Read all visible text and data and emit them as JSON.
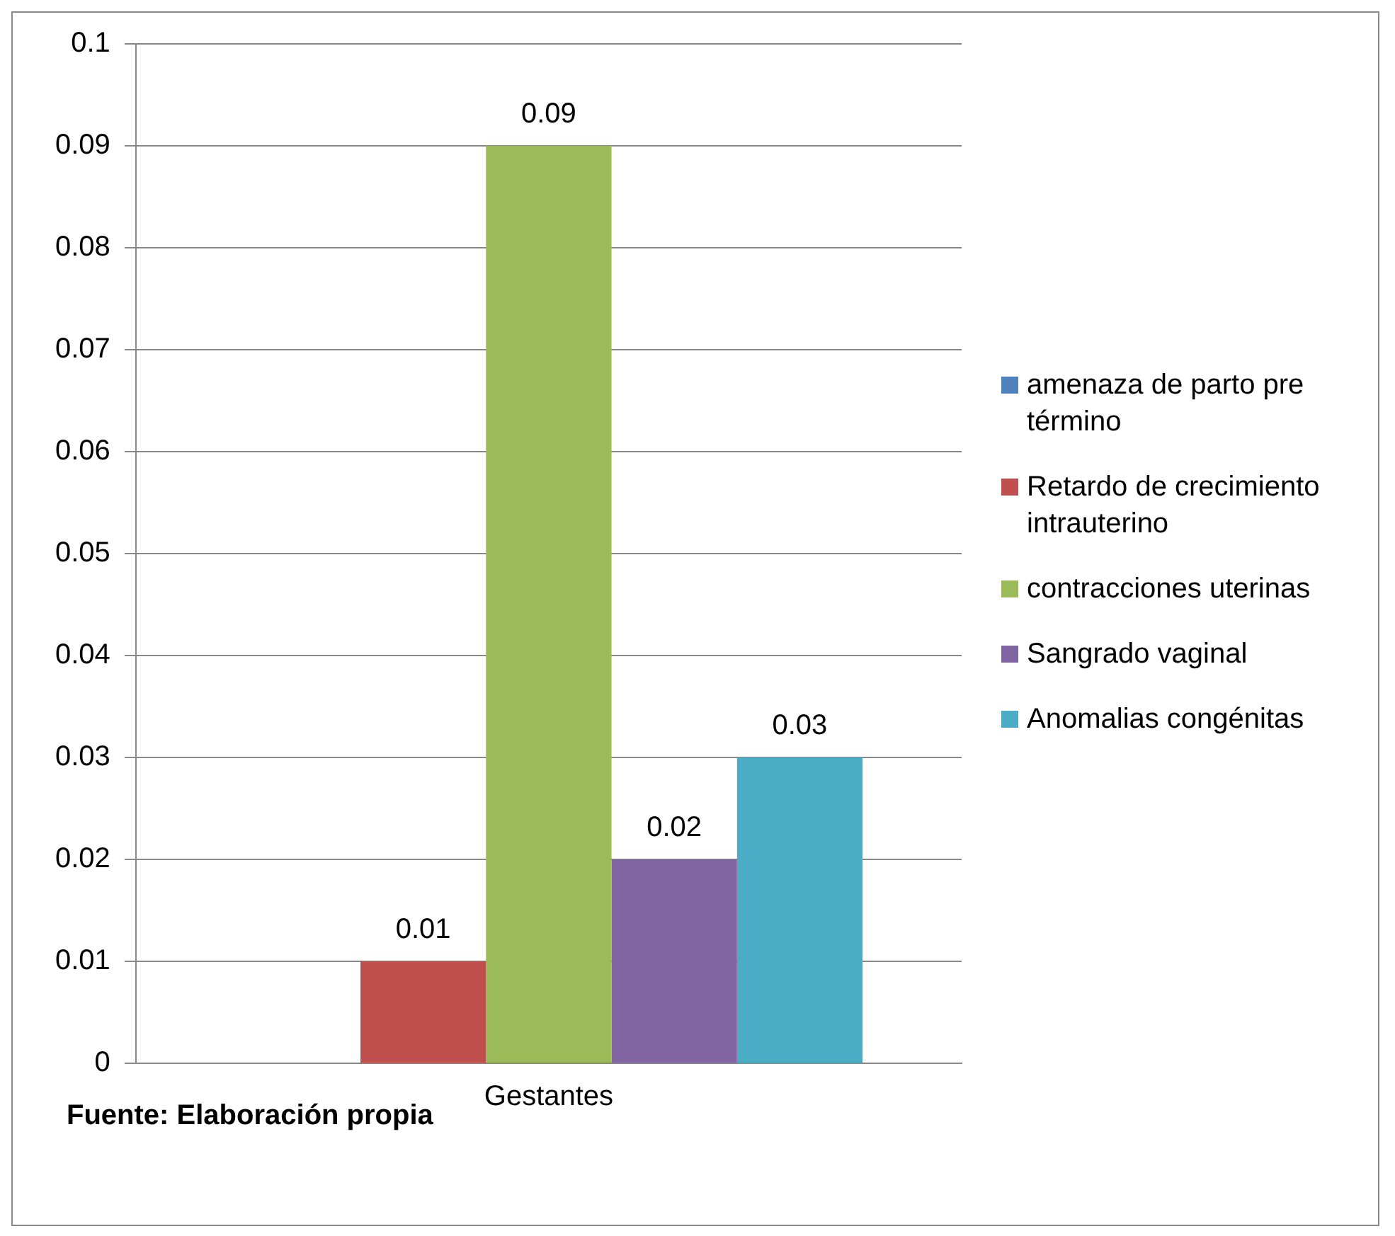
{
  "chart_data": {
    "type": "bar",
    "categories": [
      "Gestantes"
    ],
    "series": [
      {
        "name": "amenaza de parto pre término",
        "color": "#4f81bd",
        "values": [
          0
        ],
        "value_labels": [
          null
        ]
      },
      {
        "name": "Retardo de crecimiento intrauterino",
        "color": "#c0504d",
        "values": [
          0.01
        ],
        "value_labels": [
          "0.01"
        ]
      },
      {
        "name": "contracciones uterinas",
        "color": "#9bbb59",
        "values": [
          0.09
        ],
        "value_labels": [
          "0.09"
        ]
      },
      {
        "name": "Sangrado vaginal",
        "color": "#8064a2",
        "values": [
          0.02
        ],
        "value_labels": [
          "0.02"
        ]
      },
      {
        "name": "Anomalias congénitas",
        "color": "#4bacc6",
        "values": [
          0.03
        ],
        "value_labels": [
          "0.03"
        ]
      }
    ],
    "ylim": [
      0,
      0.1
    ],
    "yticks": [
      0,
      0.01,
      0.02,
      0.03,
      0.04,
      0.05,
      0.06,
      0.07,
      0.08,
      0.09,
      0.1
    ],
    "grid": "y",
    "legend": "right",
    "annotations": [
      "Fuente: Elaboración propia"
    ]
  }
}
